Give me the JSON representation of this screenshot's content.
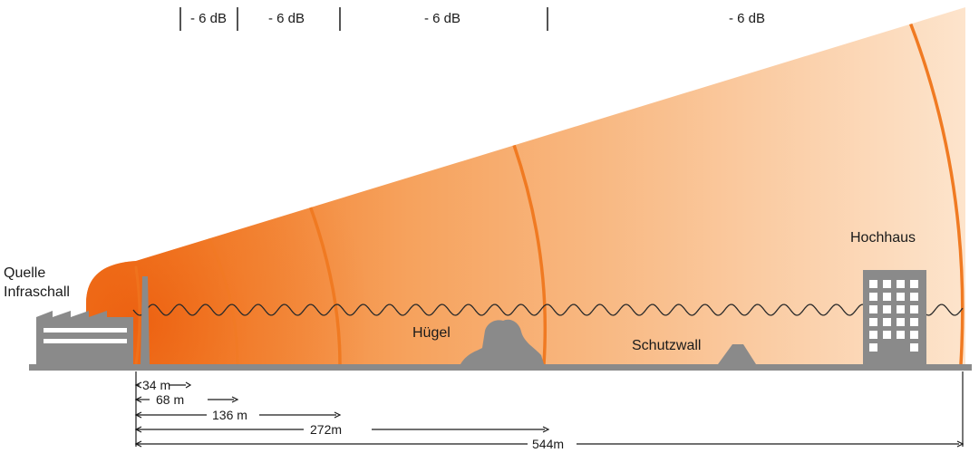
{
  "source_label": {
    "line1": "Quelle",
    "line2": "Infraschall"
  },
  "db_steps": [
    "- 6 dB",
    "- 6 dB",
    "- 6 dB",
    "- 6 dB"
  ],
  "landmarks": {
    "hill": "Hügel",
    "wall": "Schutzwall",
    "building": "Hochhaus"
  },
  "distances": [
    "34 m",
    "68 m",
    "136 m",
    "272m",
    "544m"
  ],
  "colors": {
    "wave_strong": "#ef6f1a",
    "wave_light": "#fbe3c9",
    "ground": "#8a8a8a",
    "arc": "#f07a22",
    "line": "#1a1a1a"
  }
}
